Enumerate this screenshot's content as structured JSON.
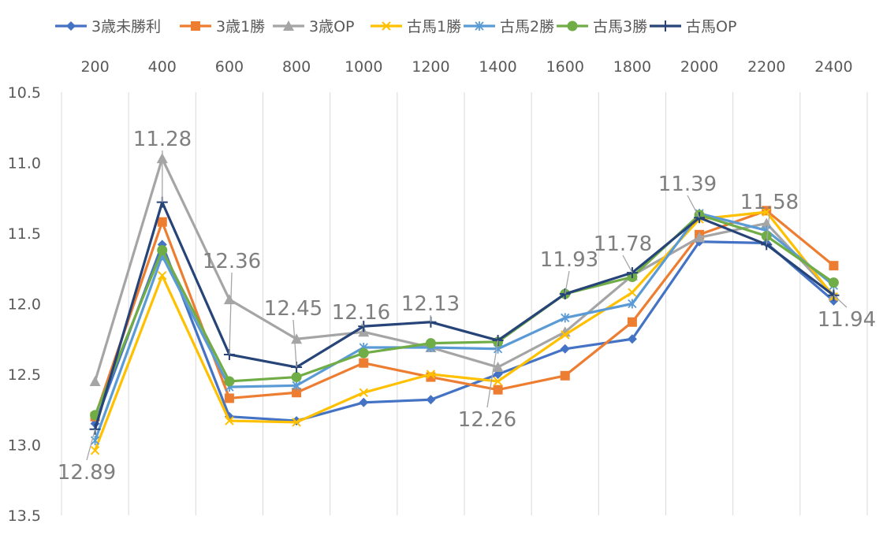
{
  "chart_data": {
    "type": "line",
    "x": [
      200,
      400,
      600,
      800,
      1000,
      1200,
      1400,
      1600,
      1800,
      2000,
      2200,
      2400
    ],
    "x_tick_labels": [
      "200",
      "400",
      "600",
      "800",
      "1000",
      "1200",
      "1400",
      "1600",
      "1800",
      "2000",
      "2200",
      "2400"
    ],
    "x_axis_position": "top",
    "ylim": [
      10.5,
      13.5
    ],
    "y_reversed": true,
    "y_ticks": [
      10.5,
      11.0,
      11.5,
      12.0,
      12.5,
      13.0,
      13.5
    ],
    "y_tick_labels": [
      "10.5",
      "11.0",
      "11.5",
      "12.0",
      "12.5",
      "13.0",
      "13.5"
    ],
    "grid": "vertical",
    "legend_position": "top",
    "series": [
      {
        "name": "3歳未勝利",
        "color": "#4472C4",
        "marker": "diamond",
        "values": [
          12.85,
          11.58,
          12.8,
          12.83,
          12.7,
          12.68,
          12.5,
          12.32,
          12.25,
          11.56,
          11.57,
          11.98
        ]
      },
      {
        "name": "3歳1勝",
        "color": "#ED7D31",
        "marker": "square",
        "values": [
          12.8,
          11.42,
          12.67,
          12.63,
          12.42,
          12.52,
          12.61,
          12.51,
          12.13,
          11.51,
          11.34,
          11.73
        ]
      },
      {
        "name": "3歳OP",
        "color": "#A5A5A5",
        "marker": "triangle",
        "values": [
          12.55,
          10.97,
          11.97,
          12.25,
          12.2,
          12.31,
          12.45,
          12.2,
          11.8,
          11.53,
          11.43,
          11.94
        ]
      },
      {
        "name": "古馬1勝",
        "color": "#FFC000",
        "marker": "x",
        "values": [
          13.04,
          11.8,
          12.83,
          12.84,
          12.63,
          12.5,
          12.55,
          12.22,
          11.92,
          11.4,
          11.35,
          11.95
        ]
      },
      {
        "name": "古馬2勝",
        "color": "#5B9BD5",
        "marker": "star",
        "values": [
          12.97,
          11.66,
          12.59,
          12.58,
          12.31,
          12.31,
          12.32,
          12.1,
          12.0,
          11.36,
          11.48,
          11.87
        ]
      },
      {
        "name": "古馬3勝",
        "color": "#70AD47",
        "marker": "circle",
        "values": [
          12.79,
          11.62,
          12.55,
          12.52,
          12.35,
          12.28,
          12.27,
          11.93,
          11.81,
          11.37,
          11.52,
          11.85
        ]
      },
      {
        "name": "古馬OP",
        "color": "#264478",
        "marker": "plus",
        "values": [
          12.89,
          11.28,
          12.36,
          12.45,
          12.16,
          12.13,
          12.26,
          11.93,
          11.78,
          11.39,
          11.58,
          11.94
        ]
      }
    ],
    "data_labels": [
      {
        "text": "12.89",
        "series": "古馬OP",
        "index": 0
      },
      {
        "text": "11.28",
        "series": "古馬OP",
        "index": 1
      },
      {
        "text": "12.36",
        "series": "古馬OP",
        "index": 2
      },
      {
        "text": "12.45",
        "series": "古馬OP",
        "index": 3
      },
      {
        "text": "12.16",
        "series": "古馬OP",
        "index": 4
      },
      {
        "text": "12.13",
        "series": "古馬OP",
        "index": 5
      },
      {
        "text": "12.26",
        "series": "古馬OP",
        "index": 6
      },
      {
        "text": "11.93",
        "series": "古馬OP",
        "index": 7
      },
      {
        "text": "11.78",
        "series": "古馬OP",
        "index": 8
      },
      {
        "text": "11.39",
        "series": "古馬OP",
        "index": 9
      },
      {
        "text": "11.58",
        "series": "古馬OP",
        "index": 10
      },
      {
        "text": "11.94",
        "series": "古馬OP",
        "index": 11
      }
    ]
  }
}
